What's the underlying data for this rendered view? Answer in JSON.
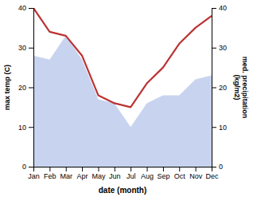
{
  "chart_data": {
    "type": "area",
    "categories": [
      "Jan",
      "Feb",
      "Mar",
      "Apr",
      "May",
      "Jun",
      "Jul",
      "Aug",
      "Sep",
      "Oct",
      "Nov",
      "Dec"
    ],
    "series": [
      {
        "type": "area",
        "color": "#b0c0e8",
        "values": [
          28,
          27,
          33,
          27,
          17,
          16,
          10,
          16,
          18,
          18,
          22,
          23
        ]
      },
      {
        "type": "line",
        "color": "#bb3333",
        "axis": "y2",
        "values": [
          40,
          34,
          33,
          28,
          18,
          16,
          15,
          21,
          25,
          31,
          35,
          38
        ]
      }
    ],
    "xlabel": "date (month)",
    "ylabel": "max temp (C)",
    "y2label": "med. precipitation\n(kg/m2)",
    "ylim": [
      0,
      40
    ],
    "yticks": [
      0,
      10,
      20,
      30,
      40
    ],
    "y2lim": [
      0,
      40
    ],
    "y2ticks": [
      0,
      10,
      20,
      30,
      40
    ],
    "grid": false
  }
}
